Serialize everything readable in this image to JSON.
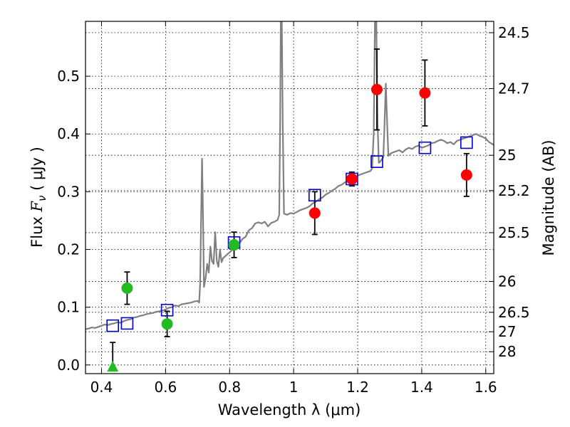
{
  "chart_data": {
    "type": "scatter",
    "xlabel": "Wavelength  λ (μm)",
    "ylabel": "Flux  F_ν  ( μJy )",
    "ylabel_parts": {
      "prefix": "Flux  ",
      "symbol": "F",
      "subscript": "ν",
      "suffix": "  ( μJy )"
    },
    "right_ylabel": "Magnitude (AB)",
    "xlim": [
      0.35,
      1.625
    ],
    "ylim": [
      -0.015,
      0.595
    ],
    "grid": true,
    "x_ticks": [
      0.4,
      0.6,
      0.8,
      1.0,
      1.2,
      1.4,
      1.6
    ],
    "x_tick_labels": [
      "0.4",
      "0.6",
      "0.8",
      "1",
      "1.2",
      "1.4",
      "1.6"
    ],
    "y_ticks": [
      0.0,
      0.1,
      0.2,
      0.3,
      0.4,
      0.5
    ],
    "y_tick_labels": [
      "0.0",
      "0.1",
      "0.2",
      "0.3",
      "0.4",
      "0.5"
    ],
    "right_y_ticks": [
      {
        "label": "24.5",
        "flux": 0.5754
      },
      {
        "label": "24.7",
        "flux": 0.4786
      },
      {
        "label": "25",
        "flux": 0.3631
      },
      {
        "label": "25.2",
        "flux": 0.302
      },
      {
        "label": "25.5",
        "flux": 0.2291
      },
      {
        "label": "26",
        "flux": 0.1445
      },
      {
        "label": "26.5",
        "flux": 0.0912
      },
      {
        "label": "27",
        "flux": 0.0575
      },
      {
        "label": "28",
        "flux": 0.0229
      }
    ],
    "colors": {
      "template": "#808080",
      "model_box": "#0000cc",
      "observed_red": "#ff0000",
      "observed_green": "#22bb22",
      "errorbar": "#000000"
    },
    "model_photometry": [
      {
        "x": 0.435,
        "y": 0.068
      },
      {
        "x": 0.48,
        "y": 0.072
      },
      {
        "x": 0.605,
        "y": 0.095
      },
      {
        "x": 0.814,
        "y": 0.212
      },
      {
        "x": 1.066,
        "y": 0.294
      },
      {
        "x": 1.182,
        "y": 0.322
      },
      {
        "x": 1.26,
        "y": 0.352
      },
      {
        "x": 1.41,
        "y": 0.376
      },
      {
        "x": 1.54,
        "y": 0.385
      }
    ],
    "observed_photometry": [
      {
        "x": 0.48,
        "y": 0.133,
        "err": 0.028,
        "color": "green",
        "marker": "circle"
      },
      {
        "x": 0.605,
        "y": 0.071,
        "err": 0.022,
        "color": "green",
        "marker": "circle"
      },
      {
        "x": 0.814,
        "y": 0.208,
        "err": 0.022,
        "color": "green",
        "marker": "circle"
      },
      {
        "x": 1.066,
        "y": 0.263,
        "err": 0.037,
        "color": "red",
        "marker": "circle"
      },
      {
        "x": 1.182,
        "y": 0.322,
        "err": 0.012,
        "color": "red",
        "marker": "circle"
      },
      {
        "x": 1.26,
        "y": 0.477,
        "err": 0.07,
        "color": "red",
        "marker": "circle"
      },
      {
        "x": 1.41,
        "y": 0.471,
        "err": 0.057,
        "color": "red",
        "marker": "circle"
      },
      {
        "x": 1.54,
        "y": 0.329,
        "err": 0.037,
        "color": "red",
        "marker": "circle"
      }
    ],
    "upper_limits": [
      {
        "x": 0.435,
        "y": -0.004,
        "err_up": 0.043,
        "color": "green",
        "marker": "triangle"
      }
    ],
    "template_spectrum": [
      [
        0.35,
        0.062
      ],
      [
        0.36,
        0.063
      ],
      [
        0.37,
        0.065
      ],
      [
        0.38,
        0.064
      ],
      [
        0.39,
        0.066
      ],
      [
        0.4,
        0.068
      ],
      [
        0.41,
        0.07
      ],
      [
        0.42,
        0.069
      ],
      [
        0.43,
        0.071
      ],
      [
        0.44,
        0.072
      ],
      [
        0.45,
        0.074
      ],
      [
        0.46,
        0.073
      ],
      [
        0.47,
        0.076
      ],
      [
        0.48,
        0.078
      ],
      [
        0.49,
        0.079
      ],
      [
        0.5,
        0.082
      ],
      [
        0.51,
        0.083
      ],
      [
        0.52,
        0.085
      ],
      [
        0.53,
        0.086
      ],
      [
        0.54,
        0.088
      ],
      [
        0.55,
        0.089
      ],
      [
        0.56,
        0.09
      ],
      [
        0.57,
        0.092
      ],
      [
        0.58,
        0.093
      ],
      [
        0.59,
        0.094
      ],
      [
        0.6,
        0.096
      ],
      [
        0.61,
        0.099
      ],
      [
        0.62,
        0.1
      ],
      [
        0.63,
        0.103
      ],
      [
        0.64,
        0.102
      ],
      [
        0.65,
        0.105
      ],
      [
        0.66,
        0.106
      ],
      [
        0.67,
        0.107
      ],
      [
        0.68,
        0.108
      ],
      [
        0.69,
        0.11
      ],
      [
        0.7,
        0.111
      ],
      [
        0.705,
        0.108
      ],
      [
        0.708,
        0.14
      ],
      [
        0.711,
        0.25
      ],
      [
        0.714,
        0.357
      ],
      [
        0.717,
        0.26
      ],
      [
        0.72,
        0.135
      ],
      [
        0.725,
        0.15
      ],
      [
        0.73,
        0.175
      ],
      [
        0.735,
        0.16
      ],
      [
        0.74,
        0.205
      ],
      [
        0.745,
        0.18
      ],
      [
        0.75,
        0.175
      ],
      [
        0.755,
        0.23
      ],
      [
        0.76,
        0.18
      ],
      [
        0.765,
        0.17
      ],
      [
        0.77,
        0.2
      ],
      [
        0.775,
        0.178
      ],
      [
        0.78,
        0.185
      ],
      [
        0.79,
        0.19
      ],
      [
        0.8,
        0.195
      ],
      [
        0.81,
        0.2
      ],
      [
        0.82,
        0.205
      ],
      [
        0.83,
        0.21
      ],
      [
        0.84,
        0.218
      ],
      [
        0.85,
        0.222
      ],
      [
        0.86,
        0.233
      ],
      [
        0.87,
        0.237
      ],
      [
        0.88,
        0.245
      ],
      [
        0.89,
        0.247
      ],
      [
        0.9,
        0.245
      ],
      [
        0.91,
        0.248
      ],
      [
        0.92,
        0.24
      ],
      [
        0.93,
        0.246
      ],
      [
        0.94,
        0.248
      ],
      [
        0.95,
        0.251
      ],
      [
        0.955,
        0.26
      ],
      [
        0.958,
        0.42
      ],
      [
        0.96,
        0.6
      ],
      [
        0.963,
        0.6
      ],
      [
        0.966,
        0.42
      ],
      [
        0.97,
        0.262
      ],
      [
        0.98,
        0.26
      ],
      [
        0.99,
        0.263
      ],
      [
        1.0,
        0.262
      ],
      [
        1.01,
        0.265
      ],
      [
        1.02,
        0.268
      ],
      [
        1.03,
        0.27
      ],
      [
        1.04,
        0.272
      ],
      [
        1.05,
        0.275
      ],
      [
        1.06,
        0.28
      ],
      [
        1.07,
        0.283
      ],
      [
        1.08,
        0.287
      ],
      [
        1.09,
        0.29
      ],
      [
        1.1,
        0.295
      ],
      [
        1.11,
        0.298
      ],
      [
        1.12,
        0.302
      ],
      [
        1.13,
        0.305
      ],
      [
        1.14,
        0.31
      ],
      [
        1.15,
        0.312
      ],
      [
        1.16,
        0.316
      ],
      [
        1.17,
        0.318
      ],
      [
        1.18,
        0.322
      ],
      [
        1.19,
        0.325
      ],
      [
        1.2,
        0.328
      ],
      [
        1.21,
        0.33
      ],
      [
        1.22,
        0.332
      ],
      [
        1.23,
        0.334
      ],
      [
        1.24,
        0.336
      ],
      [
        1.245,
        0.34
      ],
      [
        1.25,
        0.4
      ],
      [
        1.254,
        0.6
      ],
      [
        1.258,
        0.6
      ],
      [
        1.262,
        0.42
      ],
      [
        1.266,
        0.35
      ],
      [
        1.27,
        0.352
      ],
      [
        1.28,
        0.36
      ],
      [
        1.284,
        0.42
      ],
      [
        1.288,
        0.487
      ],
      [
        1.292,
        0.42
      ],
      [
        1.296,
        0.362
      ],
      [
        1.3,
        0.365
      ],
      [
        1.31,
        0.368
      ],
      [
        1.32,
        0.37
      ],
      [
        1.33,
        0.372
      ],
      [
        1.34,
        0.368
      ],
      [
        1.35,
        0.373
      ],
      [
        1.36,
        0.376
      ],
      [
        1.37,
        0.374
      ],
      [
        1.38,
        0.378
      ],
      [
        1.39,
        0.38
      ],
      [
        1.4,
        0.376
      ],
      [
        1.41,
        0.378
      ],
      [
        1.42,
        0.38
      ],
      [
        1.43,
        0.384
      ],
      [
        1.44,
        0.385
      ],
      [
        1.45,
        0.388
      ],
      [
        1.46,
        0.39
      ],
      [
        1.47,
        0.388
      ],
      [
        1.48,
        0.384
      ],
      [
        1.49,
        0.386
      ],
      [
        1.5,
        0.382
      ],
      [
        1.51,
        0.388
      ],
      [
        1.52,
        0.39
      ],
      [
        1.53,
        0.392
      ],
      [
        1.54,
        0.394
      ],
      [
        1.55,
        0.396
      ],
      [
        1.56,
        0.398
      ],
      [
        1.57,
        0.4
      ],
      [
        1.58,
        0.397
      ],
      [
        1.59,
        0.395
      ],
      [
        1.6,
        0.392
      ],
      [
        1.61,
        0.386
      ],
      [
        1.625,
        0.381
      ]
    ]
  }
}
